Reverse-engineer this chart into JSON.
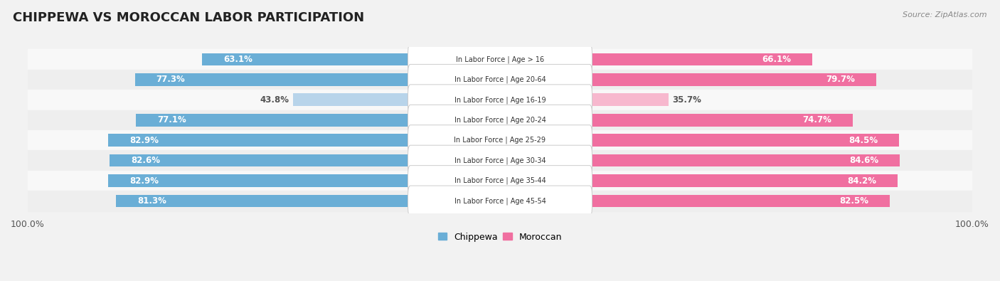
{
  "title": "CHIPPEWA VS MOROCCAN LABOR PARTICIPATION",
  "source": "Source: ZipAtlas.com",
  "categories": [
    "In Labor Force | Age > 16",
    "In Labor Force | Age 20-64",
    "In Labor Force | Age 16-19",
    "In Labor Force | Age 20-24",
    "In Labor Force | Age 25-29",
    "In Labor Force | Age 30-34",
    "In Labor Force | Age 35-44",
    "In Labor Force | Age 45-54"
  ],
  "chippewa": [
    63.1,
    77.3,
    43.8,
    77.1,
    82.9,
    82.6,
    82.9,
    81.3
  ],
  "moroccan": [
    66.1,
    79.7,
    35.7,
    74.7,
    84.5,
    84.6,
    84.2,
    82.5
  ],
  "chippewa_color": "#6aaed6",
  "chippewa_light_color": "#b8d4ea",
  "moroccan_color": "#f06fa0",
  "moroccan_light_color": "#f7b8ce",
  "bg_color": "#f2f2f2",
  "row_bg_light": "#f8f8f8",
  "row_bg_dark": "#eeeeee",
  "title_fontsize": 13,
  "bar_label_fontsize": 8.5,
  "legend_fontsize": 9,
  "axis_fontsize": 9,
  "max_value": 100.0
}
